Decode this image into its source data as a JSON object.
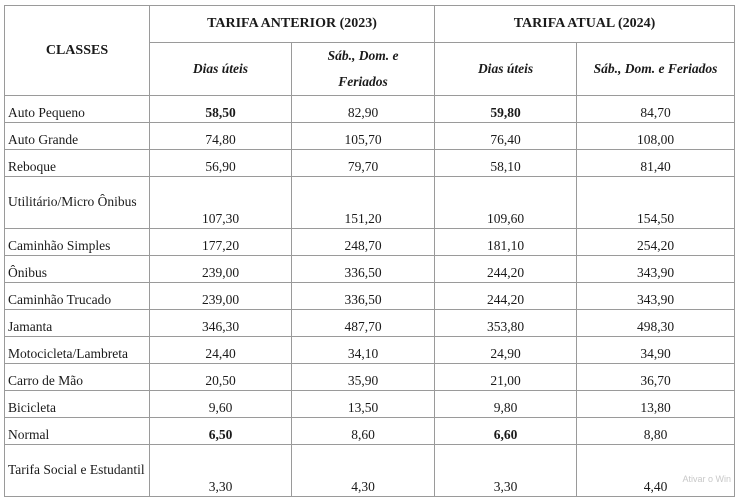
{
  "header": {
    "classes": "CLASSES",
    "group_prev": "TARIFA ANTERIOR (2023)",
    "group_curr": "TARIFA ATUAL (2024)",
    "sub_weekday": "Dias úteis",
    "sub_weekend_prev": "Sáb., Dom. e Feriados",
    "sub_weekend_curr": "Sáb., Dom. e Feriados"
  },
  "rows": [
    {
      "name": "Auto Pequeno",
      "v": [
        "58,50",
        "82,90",
        "59,80",
        "84,70"
      ]
    },
    {
      "name": "Auto Grande",
      "v": [
        "74,80",
        "105,70",
        "76,40",
        "108,00"
      ]
    },
    {
      "name": "Reboque",
      "v": [
        "56,90",
        "79,70",
        "58,10",
        "81,40"
      ]
    },
    {
      "name": "Utilitário/Micro Ônibus",
      "v": [
        "107,30",
        "151,20",
        "109,60",
        "154,50"
      ]
    },
    {
      "name": "Caminhão Simples",
      "v": [
        "177,20",
        "248,70",
        "181,10",
        "254,20"
      ]
    },
    {
      "name": "Ônibus",
      "v": [
        "239,00",
        "336,50",
        "244,20",
        "343,90"
      ]
    },
    {
      "name": "Caminhão Trucado",
      "v": [
        "239,00",
        "336,50",
        "244,20",
        "343,90"
      ]
    },
    {
      "name": "Jamanta",
      "v": [
        "346,30",
        "487,70",
        "353,80",
        "498,30"
      ]
    },
    {
      "name": "Motocicleta/Lambreta",
      "v": [
        "24,40",
        "34,10",
        "24,90",
        "34,90"
      ]
    },
    {
      "name": "Carro de Mão",
      "v": [
        "20,50",
        "35,90",
        "21,00",
        "36,70"
      ]
    },
    {
      "name": "Bicicleta",
      "v": [
        "9,60",
        "13,50",
        "9,80",
        "13,80"
      ]
    },
    {
      "name": "Normal",
      "v": [
        "6,50",
        "8,60",
        "6,60",
        "8,80"
      ]
    },
    {
      "name": "Tarifa Social e Estudantil",
      "v": [
        "3,30",
        "4,30",
        "3,30",
        "4,40"
      ]
    }
  ],
  "watermark": "Ativar o Win"
}
